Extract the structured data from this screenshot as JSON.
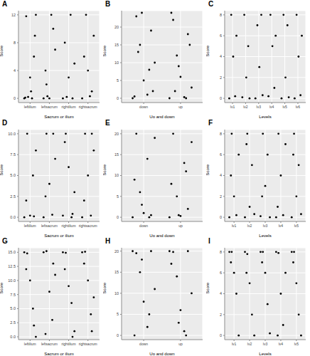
{
  "chart_data": [
    {
      "type": "scatter",
      "title": "A",
      "x_label": "Sacrum or ilium",
      "y_label": "Score",
      "color": "#000000",
      "grid": true,
      "xlim": [
        0.4,
        4.6
      ],
      "xticks": [
        {
          "value": 1,
          "label": "leftilium"
        },
        {
          "value": 2,
          "label": "leftsacrum"
        },
        {
          "value": 3,
          "label": "rightilium"
        },
        {
          "value": 4,
          "label": "rightsacrum"
        }
      ],
      "ylim": [
        -0.6,
        12.6
      ],
      "yticks": [
        0,
        4,
        8,
        12
      ],
      "x": [
        0.7,
        0.9,
        1.1,
        1.3,
        0.8,
        1.2,
        1.0,
        0.75,
        1.25,
        1.05,
        1.7,
        1.9,
        2.1,
        2.3,
        1.8,
        2.2,
        2.0,
        1.85,
        2.7,
        2.9,
        3.1,
        3.3,
        2.8,
        3.2,
        3.0,
        3.7,
        3.9,
        4.1,
        4.3,
        3.8,
        4.2,
        4.0
      ],
      "values": [
        0,
        0.2,
        0,
        12,
        11.8,
        6,
        3,
        0.1,
        9,
        1,
        0,
        0.3,
        12,
        7,
        4,
        10,
        0,
        2,
        0,
        0.2,
        12,
        5,
        8,
        0,
        3,
        0,
        12,
        0.3,
        9,
        6,
        1,
        4
      ]
    },
    {
      "type": "scatter",
      "title": "B",
      "x_label": "Up and down",
      "y_label": "Score",
      "color": "#000000",
      "grid": true,
      "xlim": [
        0.4,
        2.6
      ],
      "xticks": [
        {
          "value": 1,
          "label": "down"
        },
        {
          "value": 2,
          "label": "up"
        }
      ],
      "ylim": [
        -1.2,
        24.6
      ],
      "yticks": [
        0,
        5,
        10,
        15,
        20
      ],
      "x": [
        0.7,
        0.8,
        0.9,
        1.0,
        1.1,
        1.2,
        1.3,
        0.75,
        0.95,
        1.15,
        1.25,
        0.85,
        1.7,
        1.8,
        1.9,
        2.0,
        2.1,
        2.2,
        2.3,
        1.75,
        1.95,
        2.15,
        2.25,
        1.85
      ],
      "values": [
        0,
        23,
        15,
        5,
        1,
        19,
        10,
        0.5,
        24,
        8,
        2,
        13,
        0,
        22,
        12,
        6,
        0.3,
        18,
        3,
        24,
        9,
        0,
        15,
        2
      ]
    },
    {
      "type": "scatter",
      "title": "C",
      "x_label": "Levels",
      "y_label": "Score",
      "color": "#000000",
      "grid": true,
      "xlim": [
        0.4,
        6.6
      ],
      "xticks": [
        {
          "value": 1,
          "label": "lv1"
        },
        {
          "value": 2,
          "label": "lv2"
        },
        {
          "value": 3,
          "label": "lv3"
        },
        {
          "value": 4,
          "label": "lv4"
        },
        {
          "value": 5,
          "label": "lv5"
        },
        {
          "value": 6,
          "label": "lv6"
        }
      ],
      "ylim": [
        -0.4,
        8.4
      ],
      "yticks": [
        0,
        2,
        4,
        6,
        8
      ],
      "x": [
        0.75,
        0.9,
        1.05,
        1.2,
        1.3,
        1.75,
        1.9,
        2.05,
        2.2,
        2.3,
        2.75,
        2.9,
        3.05,
        3.2,
        3.3,
        3.75,
        3.9,
        4.05,
        4.2,
        4.3,
        4.75,
        4.9,
        5.05,
        5.2,
        5.3,
        5.75,
        5.9,
        6.05,
        6.2,
        6.3
      ],
      "values": [
        0,
        8,
        4,
        0.2,
        6,
        0.1,
        8,
        2,
        5,
        0,
        0,
        7,
        3,
        8,
        0.3,
        0.2,
        8,
        5,
        1,
        6,
        0,
        8,
        2,
        7,
        0.1,
        0,
        8,
        4,
        0.3,
        6
      ]
    },
    {
      "type": "scatter",
      "title": "D",
      "x_label": "Sacrum or ilium",
      "y_label": "Score",
      "color": "#000000",
      "grid": true,
      "xlim": [
        0.4,
        4.6
      ],
      "xticks": [
        {
          "value": 1,
          "label": "leftilium"
        },
        {
          "value": 2,
          "label": "leftsacrum"
        },
        {
          "value": 3,
          "label": "rightilium"
        },
        {
          "value": 4,
          "label": "rightsacrum"
        }
      ],
      "ylim": [
        -0.5,
        10.5
      ],
      "yticks": [
        {
          "value": 0,
          "label": "0.0"
        },
        {
          "value": 2.5,
          "label": "2.5"
        },
        {
          "value": 5,
          "label": "5.0"
        },
        {
          "value": 7.5,
          "label": "7.5"
        },
        {
          "value": 10,
          "label": "10.0"
        }
      ],
      "x": [
        0.7,
        0.85,
        1.0,
        1.15,
        1.3,
        0.8,
        1.2,
        1.7,
        1.85,
        2.0,
        2.15,
        2.3,
        1.8,
        2.2,
        2.7,
        2.85,
        3.0,
        3.15,
        3.3,
        2.8,
        3.2,
        3.7,
        3.85,
        4.0,
        4.15,
        4.3,
        3.8,
        4.2
      ],
      "values": [
        0,
        10,
        0.2,
        5,
        8,
        2,
        0.1,
        0,
        10,
        4,
        0.3,
        7,
        2.5,
        10,
        0.2,
        10,
        6,
        0,
        3,
        9,
        0.4,
        0,
        10,
        5,
        0.2,
        8,
        2,
        10
      ]
    },
    {
      "type": "scatter",
      "title": "E",
      "x_label": "Up and down",
      "y_label": "Score",
      "color": "#000000",
      "grid": true,
      "xlim": [
        0.4,
        2.6
      ],
      "xticks": [
        {
          "value": 1,
          "label": "down"
        },
        {
          "value": 2,
          "label": "up"
        }
      ],
      "ylim": [
        -1,
        21
      ],
      "yticks": [
        0,
        5,
        10,
        15,
        20
      ],
      "x": [
        0.7,
        0.8,
        0.9,
        1.0,
        1.1,
        1.2,
        1.3,
        0.75,
        0.95,
        1.15,
        1.7,
        1.8,
        1.9,
        2.0,
        2.1,
        2.2,
        2.3,
        1.75,
        1.95,
        2.15
      ],
      "values": [
        0,
        20,
        6,
        1,
        14,
        0.5,
        19,
        9,
        3,
        0,
        0,
        20,
        5,
        0.3,
        13,
        2,
        18,
        8,
        0.5,
        11
      ]
    },
    {
      "type": "scatter",
      "title": "F",
      "x_label": "Levels",
      "y_label": "Score",
      "color": "#000000",
      "grid": true,
      "xlim": [
        0.4,
        5.6
      ],
      "xticks": [
        {
          "value": 1,
          "label": "lv1"
        },
        {
          "value": 2,
          "label": "lv2"
        },
        {
          "value": 3,
          "label": "lv3"
        },
        {
          "value": 4,
          "label": "lv4"
        },
        {
          "value": 5,
          "label": "lv5"
        }
      ],
      "ylim": [
        -0.4,
        8.4
      ],
      "yticks": [
        0,
        2,
        4,
        6,
        8
      ],
      "x": [
        0.7,
        0.85,
        1.0,
        1.15,
        1.3,
        0.8,
        1.7,
        1.85,
        2.0,
        2.15,
        2.3,
        1.8,
        2.7,
        2.85,
        3.0,
        3.15,
        3.3,
        2.8,
        3.7,
        3.85,
        4.0,
        4.15,
        4.3,
        3.8,
        4.7,
        4.85,
        5.0,
        5.15,
        5.3,
        4.8
      ],
      "values": [
        0,
        8,
        2,
        0.2,
        6,
        4,
        0,
        8,
        1,
        5,
        0.3,
        7,
        0.1,
        8,
        3,
        6,
        0,
        2,
        0,
        8,
        4,
        0.2,
        7,
        1,
        0,
        8,
        2,
        5,
        0.3,
        6
      ]
    },
    {
      "type": "scatter",
      "title": "G",
      "x_label": "Sacrum or ilium",
      "y_label": "Score",
      "color": "#000000",
      "grid": true,
      "xlim": [
        0.4,
        4.6
      ],
      "xticks": [
        {
          "value": 1,
          "label": "leftilium"
        },
        {
          "value": 2,
          "label": "leftsacrum"
        },
        {
          "value": 3,
          "label": "rightilium"
        },
        {
          "value": 4,
          "label": "rightsacrum"
        }
      ],
      "ylim": [
        -0.5,
        15.8
      ],
      "yticks": [
        {
          "value": 0,
          "label": "0.0"
        },
        {
          "value": 2.5,
          "label": "2.5"
        },
        {
          "value": 5,
          "label": "5.0"
        },
        {
          "value": 7.5,
          "label": "7.5"
        },
        {
          "value": 10,
          "label": "10.0"
        },
        {
          "value": 12.5,
          "label": "12.5"
        },
        {
          "value": 15,
          "label": "15.0"
        }
      ],
      "x": [
        0.7,
        0.85,
        1.0,
        1.15,
        1.3,
        0.8,
        1.2,
        1.7,
        1.85,
        2.0,
        2.15,
        2.3,
        1.8,
        2.2,
        2.7,
        2.85,
        3.0,
        3.15,
        3.3,
        2.8,
        3.2,
        3.7,
        3.85,
        4.0,
        4.15,
        4.3,
        3.8,
        4.2
      ],
      "values": [
        15,
        14.8,
        10,
        5,
        0,
        12,
        2,
        15,
        15.2,
        8,
        3,
        11,
        0.5,
        13,
        15,
        14.9,
        9,
        6,
        1,
        12,
        0,
        15,
        15.1,
        10,
        4,
        7,
        13,
        1
      ]
    },
    {
      "type": "scatter",
      "title": "H",
      "x_label": "Up and down",
      "y_label": "Score",
      "color": "#000000",
      "grid": true,
      "xlim": [
        0.4,
        2.6
      ],
      "xticks": [
        {
          "value": 1,
          "label": "down"
        },
        {
          "value": 2,
          "label": "up"
        }
      ],
      "ylim": [
        -1,
        20.8
      ],
      "yticks": [
        0,
        5,
        10,
        15,
        20
      ],
      "x": [
        0.7,
        0.8,
        0.9,
        1.0,
        1.1,
        1.2,
        1.3,
        0.75,
        0.95,
        1.15,
        1.7,
        1.8,
        1.9,
        2.0,
        2.1,
        2.2,
        2.3,
        1.75,
        1.95,
        2.15
      ],
      "values": [
        20,
        19.5,
        15,
        8,
        2,
        20,
        11,
        0,
        18,
        5,
        20,
        19.8,
        14,
        6,
        1,
        20,
        10,
        17,
        3,
        0
      ]
    },
    {
      "type": "scatter",
      "title": "I",
      "x_label": "Levels",
      "y_label": "Score",
      "color": "#000000",
      "grid": true,
      "xlim": [
        0.4,
        5.6
      ],
      "xticks": [
        {
          "value": 1,
          "label": "lv1"
        },
        {
          "value": 2,
          "label": "lv2"
        },
        {
          "value": 3,
          "label": "lv3"
        },
        {
          "value": 4,
          "label": "lv4"
        },
        {
          "value": 5,
          "label": "lv5"
        }
      ],
      "ylim": [
        -0.4,
        8.4
      ],
      "yticks": [
        0,
        2,
        4,
        6,
        8
      ],
      "x": [
        0.7,
        0.85,
        1.0,
        1.15,
        1.3,
        0.8,
        1.7,
        1.85,
        2.0,
        2.15,
        2.3,
        1.8,
        2.7,
        2.85,
        3.0,
        3.15,
        3.3,
        2.8,
        3.7,
        3.85,
        4.0,
        4.15,
        4.3,
        3.8,
        4.7,
        4.85,
        5.0,
        5.15,
        5.3,
        4.8
      ],
      "values": [
        8,
        8,
        6,
        4,
        0,
        7,
        8,
        7.8,
        5,
        2,
        0,
        6,
        8,
        8,
        6,
        3,
        0.2,
        7,
        8,
        7.9,
        4,
        1,
        6,
        0,
        8,
        8,
        5,
        2,
        0,
        7
      ]
    }
  ]
}
